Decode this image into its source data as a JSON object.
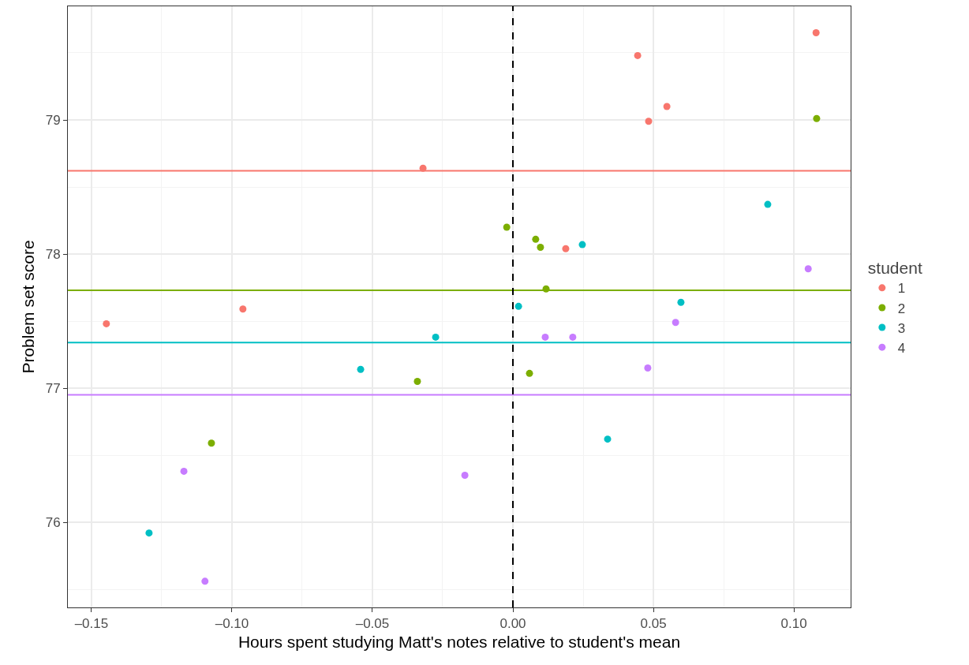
{
  "chart_data": {
    "type": "scatter",
    "xlabel": "Hours spent studying Matt's notes relative to student's mean",
    "ylabel": "Problem set score",
    "legend_title": "student",
    "legend": "right",
    "grid": true,
    "marker": "circle",
    "xlim": [
      -0.1584,
      0.1202
    ],
    "xticks": [
      {
        "value": -0.15,
        "label": "–0.15"
      },
      {
        "value": -0.1,
        "label": "–0.10"
      },
      {
        "value": -0.05,
        "label": "–0.05"
      },
      {
        "value": 0,
        "label": "0.00"
      },
      {
        "value": 0.05,
        "label": "0.05"
      },
      {
        "value": 0.1,
        "label": "0.10"
      }
    ],
    "ylim": [
      75.365,
      79.847
    ],
    "yticks": [
      76,
      77,
      78,
      79
    ],
    "series": [
      {
        "name": "1",
        "color": "#f8766d",
        "x": [
          0.0444,
          0.0548,
          0.0483,
          0.1079,
          -0.032,
          0.0188,
          -0.0961,
          -0.1447
        ],
        "values": [
          79.48,
          79.1,
          78.99,
          79.65,
          78.64,
          78.04,
          77.59,
          77.48
        ]
      },
      {
        "name": "2",
        "color": "#7cae00",
        "x": [
          0.1081,
          -0.0022,
          0.0081,
          0.0098,
          0.0118,
          0.0059,
          -0.034,
          -0.1073
        ],
        "values": [
          79.01,
          78.2,
          78.11,
          78.05,
          77.74,
          77.11,
          77.05,
          76.59
        ]
      },
      {
        "name": "3",
        "color": "#00bfc4",
        "x": [
          0.0907,
          0.0247,
          0.002,
          0.0598,
          -0.0275,
          -0.0542,
          0.0337,
          -0.1295
        ],
        "values": [
          78.37,
          78.07,
          77.61,
          77.64,
          77.38,
          77.14,
          76.62,
          75.92
        ]
      },
      {
        "name": "4",
        "color": "#c77cff",
        "x": [
          0.1051,
          0.0579,
          0.0115,
          0.0213,
          0.048,
          -0.0171,
          -0.1171,
          -0.1096
        ],
        "values": [
          77.89,
          77.49,
          77.38,
          77.38,
          77.15,
          76.35,
          76.38,
          75.56
        ]
      }
    ],
    "ref_lines": [
      {
        "axis": "y",
        "value": 78.62,
        "color": "#f8766d",
        "line_style": "solid"
      },
      {
        "axis": "y",
        "value": 77.73,
        "color": "#7cae00",
        "line_style": "solid"
      },
      {
        "axis": "y",
        "value": 77.34,
        "color": "#00bfc4",
        "line_style": "solid"
      },
      {
        "axis": "y",
        "value": 76.95,
        "color": "#c77cff",
        "line_style": "solid"
      },
      {
        "axis": "x",
        "value": 0,
        "color": "#000000",
        "line_style": "dashed"
      }
    ]
  }
}
